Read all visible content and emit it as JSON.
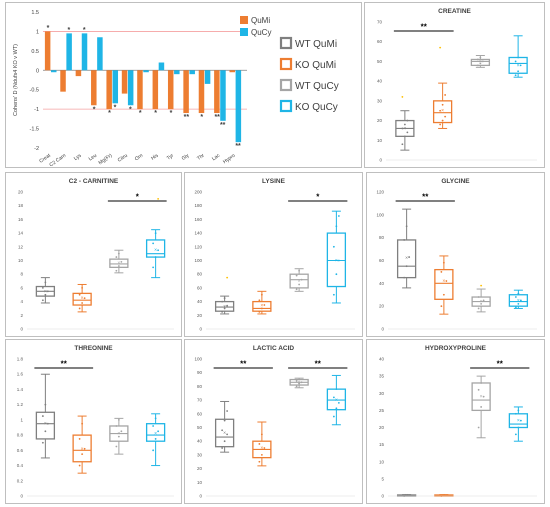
{
  "colors": {
    "wt_qumi": "#7f7f7f",
    "ko_qumi": "#ed7d31",
    "wt_qucy": "#a5a5a5",
    "ko_qucy": "#1fb5e6",
    "gold": "#ffc000",
    "ref_line": "#f4a0a0"
  },
  "legend_main": {
    "entries": [
      {
        "label": "WT QuMi",
        "color": "#7f7f7f"
      },
      {
        "label": "KO QuMi",
        "color": "#ed7d31"
      },
      {
        "label": "WT QuCy",
        "color": "#a5a5a5"
      },
      {
        "label": "KO QuCy",
        "color": "#1fb5e6"
      }
    ]
  },
  "chart_data": [
    {
      "id": "cohens-d",
      "type": "bar",
      "title": "",
      "ylabel": "Cohens' D (Ndufs4 KO v WT)",
      "ylim": [
        -2,
        1.5
      ],
      "yticks": [
        -2,
        -1.5,
        -1,
        -0.5,
        0,
        0.5,
        1,
        1.5
      ],
      "ytick_labels": [
        "-2",
        "-1.5",
        "-1",
        "-0.5",
        "0",
        "0.5",
        "1",
        "1.5"
      ],
      "reference_lines": [
        1,
        -1
      ],
      "categories": [
        "Creat",
        "C2 Carn",
        "Lys",
        "Leu",
        "Mg(Fr)",
        "Citru",
        "Orn",
        "His",
        "Tyr",
        "Gly",
        "Thr",
        "Lac",
        "Hypro"
      ],
      "legend": [
        "QuMi",
        "QuCy"
      ],
      "series": [
        {
          "name": "QuMi",
          "values": [
            1.0,
            -0.55,
            -0.15,
            -0.9,
            -1.0,
            -0.6,
            -1.0,
            -1.0,
            -1.0,
            -1.1,
            -1.1,
            -1.1,
            -0.05
          ]
        },
        {
          "name": "QuCy",
          "values": [
            -0.05,
            0.95,
            0.95,
            0.85,
            -0.85,
            -0.9,
            -0.05,
            0.2,
            -0.1,
            -0.1,
            -0.35,
            -1.3,
            -1.85
          ]
        }
      ],
      "annotations": [
        {
          "category": "Creat",
          "series": "QuMi",
          "text": "*"
        },
        {
          "category": "C2 Carn",
          "series": "QuCy",
          "text": "*"
        },
        {
          "category": "Lys",
          "series": "QuCy",
          "text": "*"
        },
        {
          "category": "Leu",
          "series": "QuMi",
          "text": "*"
        },
        {
          "category": "Mg(Fr)",
          "series": "QuMi",
          "text": "*"
        },
        {
          "category": "Mg(Fr)",
          "series": "QuCy",
          "text": "*"
        },
        {
          "category": "Citru",
          "series": "QuCy",
          "text": "*"
        },
        {
          "category": "Orn",
          "series": "QuMi",
          "text": "*"
        },
        {
          "category": "His",
          "series": "QuMi",
          "text": "*"
        },
        {
          "category": "Tyr",
          "series": "QuMi",
          "text": "*"
        },
        {
          "category": "Gly",
          "series": "QuMi",
          "text": "**"
        },
        {
          "category": "Thr",
          "series": "QuMi",
          "text": "*"
        },
        {
          "category": "Lac",
          "series": "QuMi",
          "text": "**"
        },
        {
          "category": "Lac",
          "series": "QuCy",
          "text": "**"
        },
        {
          "category": "Hypro",
          "series": "QuCy",
          "text": "**"
        }
      ]
    },
    {
      "id": "creatine",
      "type": "box",
      "title": "CREATINE",
      "ylim": [
        0,
        70
      ],
      "yticks": [
        0,
        10,
        20,
        30,
        40,
        50,
        60,
        70
      ],
      "groups": [
        {
          "name": "WT QuMi",
          "min": 5,
          "q1": 12,
          "median": 16,
          "q3": 20,
          "max": 25,
          "mean": 16,
          "points": [
            8,
            12,
            14,
            16,
            18,
            20,
            32
          ]
        },
        {
          "name": "KO QuMi",
          "min": 16,
          "q1": 19,
          "median": 24,
          "q3": 30,
          "max": 39,
          "mean": 25,
          "points": [
            18,
            20,
            22,
            25,
            28,
            33,
            57
          ]
        },
        {
          "name": "WT QuCy",
          "min": 47,
          "q1": 48,
          "median": 50,
          "q3": 51,
          "max": 53,
          "mean": 50,
          "points": [
            48,
            49,
            50,
            51,
            52
          ]
        },
        {
          "name": "KO QuCy",
          "min": 42,
          "q1": 44,
          "median": 49,
          "q3": 52,
          "max": 63,
          "mean": 48,
          "points": [
            43,
            45,
            48,
            50,
            52
          ]
        }
      ],
      "significance": [
        {
          "from": 0,
          "to": 1,
          "text": "**"
        }
      ]
    },
    {
      "id": "c2-carnitine",
      "type": "box",
      "title": "C2 - CARNITINE",
      "ylim": [
        0,
        20
      ],
      "yticks": [
        0,
        2,
        4,
        6,
        8,
        10,
        12,
        14,
        16,
        18,
        20
      ],
      "groups": [
        {
          "name": "WT QuMi",
          "min": 3.8,
          "q1": 4.8,
          "median": 5.5,
          "q3": 6.2,
          "max": 7.5,
          "mean": 5.5,
          "points": [
            4.2,
            5,
            5.5,
            6,
            6.8
          ]
        },
        {
          "name": "KO QuMi",
          "min": 2.5,
          "q1": 3.5,
          "median": 4.2,
          "q3": 5.2,
          "max": 6.5,
          "mean": 4.5,
          "points": [
            3,
            3.8,
            4.5,
            5,
            6
          ]
        },
        {
          "name": "WT QuCy",
          "min": 8.2,
          "q1": 9,
          "median": 9.5,
          "q3": 10.2,
          "max": 11.5,
          "mean": 9.6,
          "points": [
            8.5,
            9.2,
            9.8,
            10.5,
            11
          ]
        },
        {
          "name": "KO QuCy",
          "min": 7.5,
          "q1": 10.5,
          "median": 11,
          "q3": 13,
          "max": 14.5,
          "mean": 11.5,
          "points": [
            9,
            10.5,
            11.5,
            12.5,
            14,
            19
          ]
        }
      ],
      "significance": [
        {
          "from": 2,
          "to": 3,
          "text": "*"
        }
      ]
    },
    {
      "id": "lysine",
      "type": "box",
      "title": "LYSINE",
      "ylim": [
        0,
        200
      ],
      "yticks": [
        0,
        20,
        40,
        60,
        80,
        100,
        120,
        140,
        160,
        180,
        200
      ],
      "groups": [
        {
          "name": "WT QuMi",
          "min": 22,
          "q1": 26,
          "median": 32,
          "q3": 40,
          "max": 48,
          "mean": 33,
          "points": [
            25,
            30,
            34,
            40,
            45,
            75
          ]
        },
        {
          "name": "KO QuMi",
          "min": 22,
          "q1": 26,
          "median": 30,
          "q3": 40,
          "max": 55,
          "mean": 34,
          "points": [
            25,
            30,
            35,
            42,
            50
          ]
        },
        {
          "name": "WT QuCy",
          "min": 55,
          "q1": 60,
          "median": 72,
          "q3": 80,
          "max": 88,
          "mean": 70,
          "points": [
            58,
            65,
            72,
            78,
            85
          ]
        },
        {
          "name": "KO QuCy",
          "min": 38,
          "q1": 62,
          "median": 100,
          "q3": 140,
          "max": 172,
          "mean": 100,
          "points": [
            50,
            80,
            100,
            120,
            150,
            165
          ]
        }
      ],
      "significance": [
        {
          "from": 2,
          "to": 3,
          "text": "*"
        }
      ]
    },
    {
      "id": "glycine",
      "type": "box",
      "title": "GLYCINE",
      "ylim": [
        0,
        120
      ],
      "yticks": [
        0,
        20,
        40,
        60,
        80,
        100,
        120
      ],
      "groups": [
        {
          "name": "WT QuMi",
          "min": 36,
          "q1": 45,
          "median": 55,
          "q3": 78,
          "max": 105,
          "mean": 62,
          "points": [
            45,
            55,
            63,
            78,
            90
          ]
        },
        {
          "name": "KO QuMi",
          "min": 13,
          "q1": 26,
          "median": 40,
          "q3": 52,
          "max": 64,
          "mean": 42,
          "points": [
            20,
            30,
            42,
            50,
            58
          ]
        },
        {
          "name": "WT QuCy",
          "min": 15,
          "q1": 20,
          "median": 24,
          "q3": 28,
          "max": 35,
          "mean": 24,
          "points": [
            18,
            22,
            25,
            28,
            38
          ]
        },
        {
          "name": "KO QuCy",
          "min": 18,
          "q1": 20,
          "median": 24,
          "q3": 30,
          "max": 34,
          "mean": 25,
          "points": [
            19,
            22,
            25,
            28,
            31
          ]
        }
      ],
      "significance": [
        {
          "from": 0,
          "to": 1,
          "text": "**"
        }
      ]
    },
    {
      "id": "threonine",
      "type": "box",
      "title": "THREONINE",
      "ylim": [
        0,
        1.8
      ],
      "yticks": [
        0,
        0.2,
        0.4,
        0.6,
        0.8,
        1,
        1.2,
        1.4,
        1.6,
        1.8
      ],
      "groups": [
        {
          "name": "WT QuMi",
          "min": 0.5,
          "q1": 0.75,
          "median": 0.95,
          "q3": 1.1,
          "max": 1.6,
          "mean": 0.95,
          "points": [
            0.7,
            0.85,
            0.95,
            1.05,
            1.2
          ]
        },
        {
          "name": "KO QuMi",
          "min": 0.3,
          "q1": 0.45,
          "median": 0.6,
          "q3": 0.8,
          "max": 1.05,
          "mean": 0.62,
          "points": [
            0.4,
            0.55,
            0.62,
            0.75,
            0.95
          ]
        },
        {
          "name": "WT QuCy",
          "min": 0.55,
          "q1": 0.72,
          "median": 0.82,
          "q3": 0.92,
          "max": 1.02,
          "mean": 0.82,
          "points": [
            0.65,
            0.78,
            0.85,
            0.92,
            1.0
          ]
        },
        {
          "name": "KO QuCy",
          "min": 0.4,
          "q1": 0.72,
          "median": 0.8,
          "q3": 0.95,
          "max": 1.08,
          "mean": 0.82,
          "points": [
            0.6,
            0.75,
            0.85,
            0.92,
            1.02
          ]
        }
      ],
      "significance": [
        {
          "from": 0,
          "to": 1,
          "text": "**"
        }
      ]
    },
    {
      "id": "lactic-acid",
      "type": "box",
      "title": "LACTIC ACID",
      "ylim": [
        0,
        100
      ],
      "yticks": [
        0,
        10,
        20,
        30,
        40,
        50,
        60,
        70,
        80,
        90,
        100
      ],
      "groups": [
        {
          "name": "WT QuMi",
          "min": 32,
          "q1": 36,
          "median": 43,
          "q3": 56,
          "max": 69,
          "mean": 46,
          "points": [
            35,
            40,
            45,
            48,
            55,
            62
          ]
        },
        {
          "name": "KO QuMi",
          "min": 22,
          "q1": 28,
          "median": 34,
          "q3": 40,
          "max": 54,
          "mean": 35,
          "points": [
            25,
            30,
            35,
            38,
            45
          ]
        },
        {
          "name": "WT QuCy",
          "min": 79,
          "q1": 81,
          "median": 83,
          "q3": 85,
          "max": 86,
          "mean": 83,
          "points": [
            80,
            82,
            83,
            84,
            85
          ]
        },
        {
          "name": "KO QuCy",
          "min": 52,
          "q1": 63,
          "median": 70,
          "q3": 78,
          "max": 88,
          "mean": 70,
          "points": [
            58,
            64,
            68,
            72,
            78
          ]
        }
      ],
      "significance": [
        {
          "from": 0,
          "to": 1,
          "text": "**"
        },
        {
          "from": 2,
          "to": 3,
          "text": "**"
        }
      ]
    },
    {
      "id": "hydroxyproline",
      "type": "box",
      "title": "HYDROXYPROLINE",
      "ylim": [
        0,
        40
      ],
      "yticks": [
        0,
        5,
        10,
        15,
        20,
        25,
        30,
        35,
        40
      ],
      "groups": [
        {
          "name": "WT QuMi",
          "min": 0,
          "q1": 0,
          "median": 0,
          "q3": 0.3,
          "max": 0.4,
          "mean": 0.1,
          "points": [
            0,
            0.1,
            0.2
          ]
        },
        {
          "name": "KO QuMi",
          "min": 0,
          "q1": 0,
          "median": 0,
          "q3": 0.3,
          "max": 0.4,
          "mean": 0.1,
          "points": [
            0,
            0.1,
            0.2
          ]
        },
        {
          "name": "WT QuCy",
          "min": 17,
          "q1": 25,
          "median": 28,
          "q3": 33,
          "max": 35,
          "mean": 29,
          "points": [
            20,
            26,
            29,
            31,
            33
          ]
        },
        {
          "name": "KO QuCy",
          "min": 16,
          "q1": 20,
          "median": 21,
          "q3": 24,
          "max": 26,
          "mean": 22,
          "points": [
            18,
            20,
            22,
            24,
            25
          ]
        }
      ],
      "significance": [
        {
          "from": 2,
          "to": 3,
          "text": "**"
        }
      ]
    }
  ]
}
